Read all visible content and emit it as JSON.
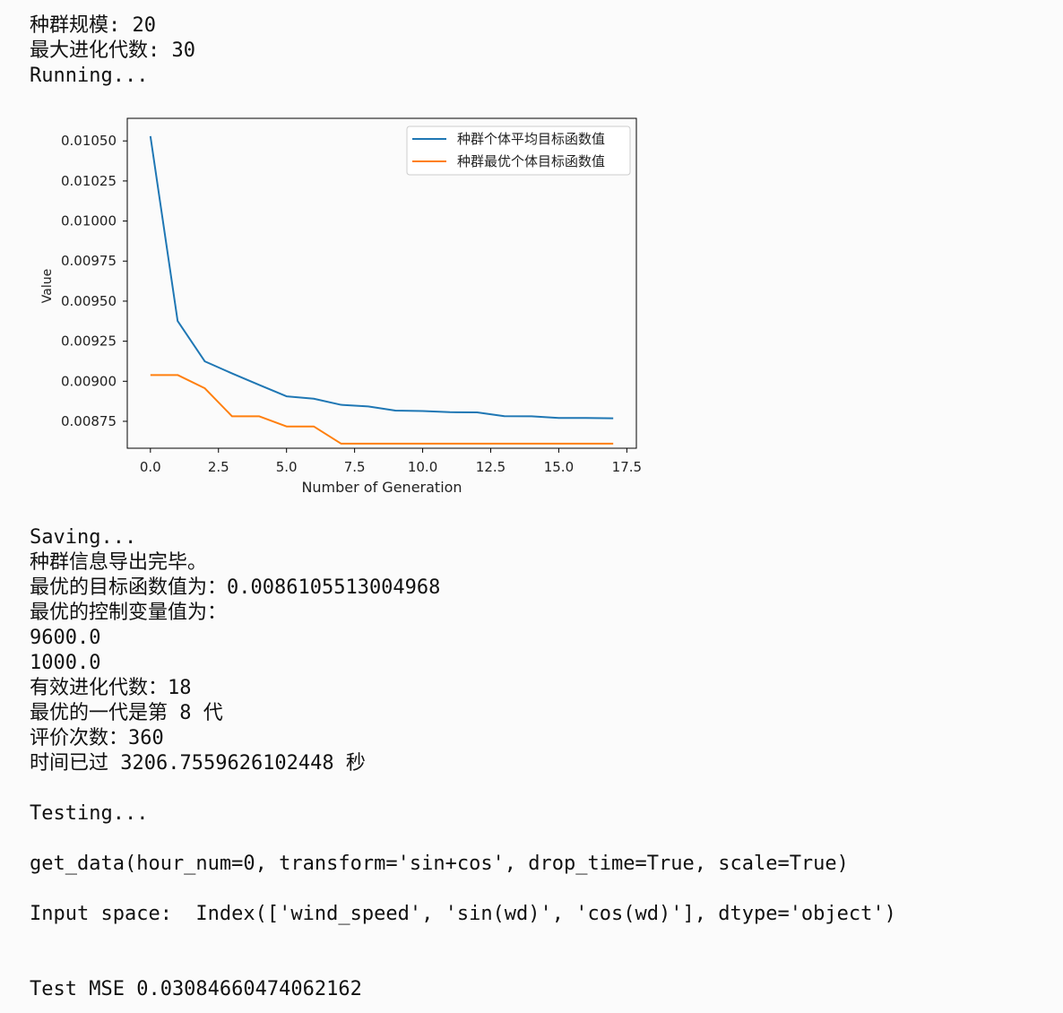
{
  "output": {
    "top_lines": [
      "种群规模: 20",
      "最大进化代数: 30",
      "Running..."
    ],
    "middle_lines": [
      "Saving...",
      "种群信息导出完毕。",
      "最优的目标函数值为：0.0086105513004968",
      "最优的控制变量值为：",
      "9600.0",
      "1000.0",
      "有效进化代数：18",
      "最优的一代是第 8 代",
      "评价次数：360",
      "时间已过 3206.7559626102448 秒",
      "",
      "Testing...",
      "",
      "get_data(hour_num=0, transform='sin+cos', drop_time=True, scale=True)",
      "",
      "Input space:  Index(['wind_speed', 'sin(wd)', 'cos(wd)'], dtype='object')",
      "",
      "",
      "Test MSE 0.03084660474062162"
    ]
  },
  "chart_data": {
    "type": "line",
    "xlabel": "Number of Generation",
    "ylabel": "Value",
    "xlim": [
      -0.85,
      17.85
    ],
    "ylim": [
      0.008582,
      0.010641
    ],
    "xticks": [
      0.0,
      2.5,
      5.0,
      7.5,
      10.0,
      12.5,
      15.0,
      17.5
    ],
    "xtick_labels": [
      "0.0",
      "2.5",
      "5.0",
      "7.5",
      "10.0",
      "12.5",
      "15.0",
      "17.5"
    ],
    "yticks": [
      0.00875,
      0.009,
      0.00925,
      0.0095,
      0.00975,
      0.01,
      0.01025,
      0.0105
    ],
    "ytick_labels": [
      "0.00875",
      "0.00900",
      "0.00925",
      "0.00950",
      "0.00975",
      "0.01000",
      "0.01025",
      "0.01050"
    ],
    "legend_position": "top-right",
    "x": [
      0,
      1,
      2,
      3,
      4,
      5,
      6,
      7,
      8,
      9,
      10,
      11,
      12,
      13,
      14,
      15,
      16,
      17
    ],
    "series": [
      {
        "name": "种群个体平均目标函数值",
        "color": "#1f77b4",
        "values": [
          0.01053,
          0.009376,
          0.009124,
          0.009049,
          0.008977,
          0.008906,
          0.008891,
          0.008853,
          0.008843,
          0.008817,
          0.008814,
          0.008807,
          0.008806,
          0.008782,
          0.008781,
          0.008771,
          0.008771,
          0.008769
        ]
      },
      {
        "name": "种群最优个体目标函数值",
        "color": "#ff7f0e",
        "values": [
          0.009039,
          0.009039,
          0.008956,
          0.008781,
          0.008781,
          0.008718,
          0.008718,
          0.008611,
          0.008611,
          0.008611,
          0.008611,
          0.008611,
          0.008611,
          0.008611,
          0.008611,
          0.008611,
          0.008611,
          0.008611
        ]
      }
    ]
  }
}
